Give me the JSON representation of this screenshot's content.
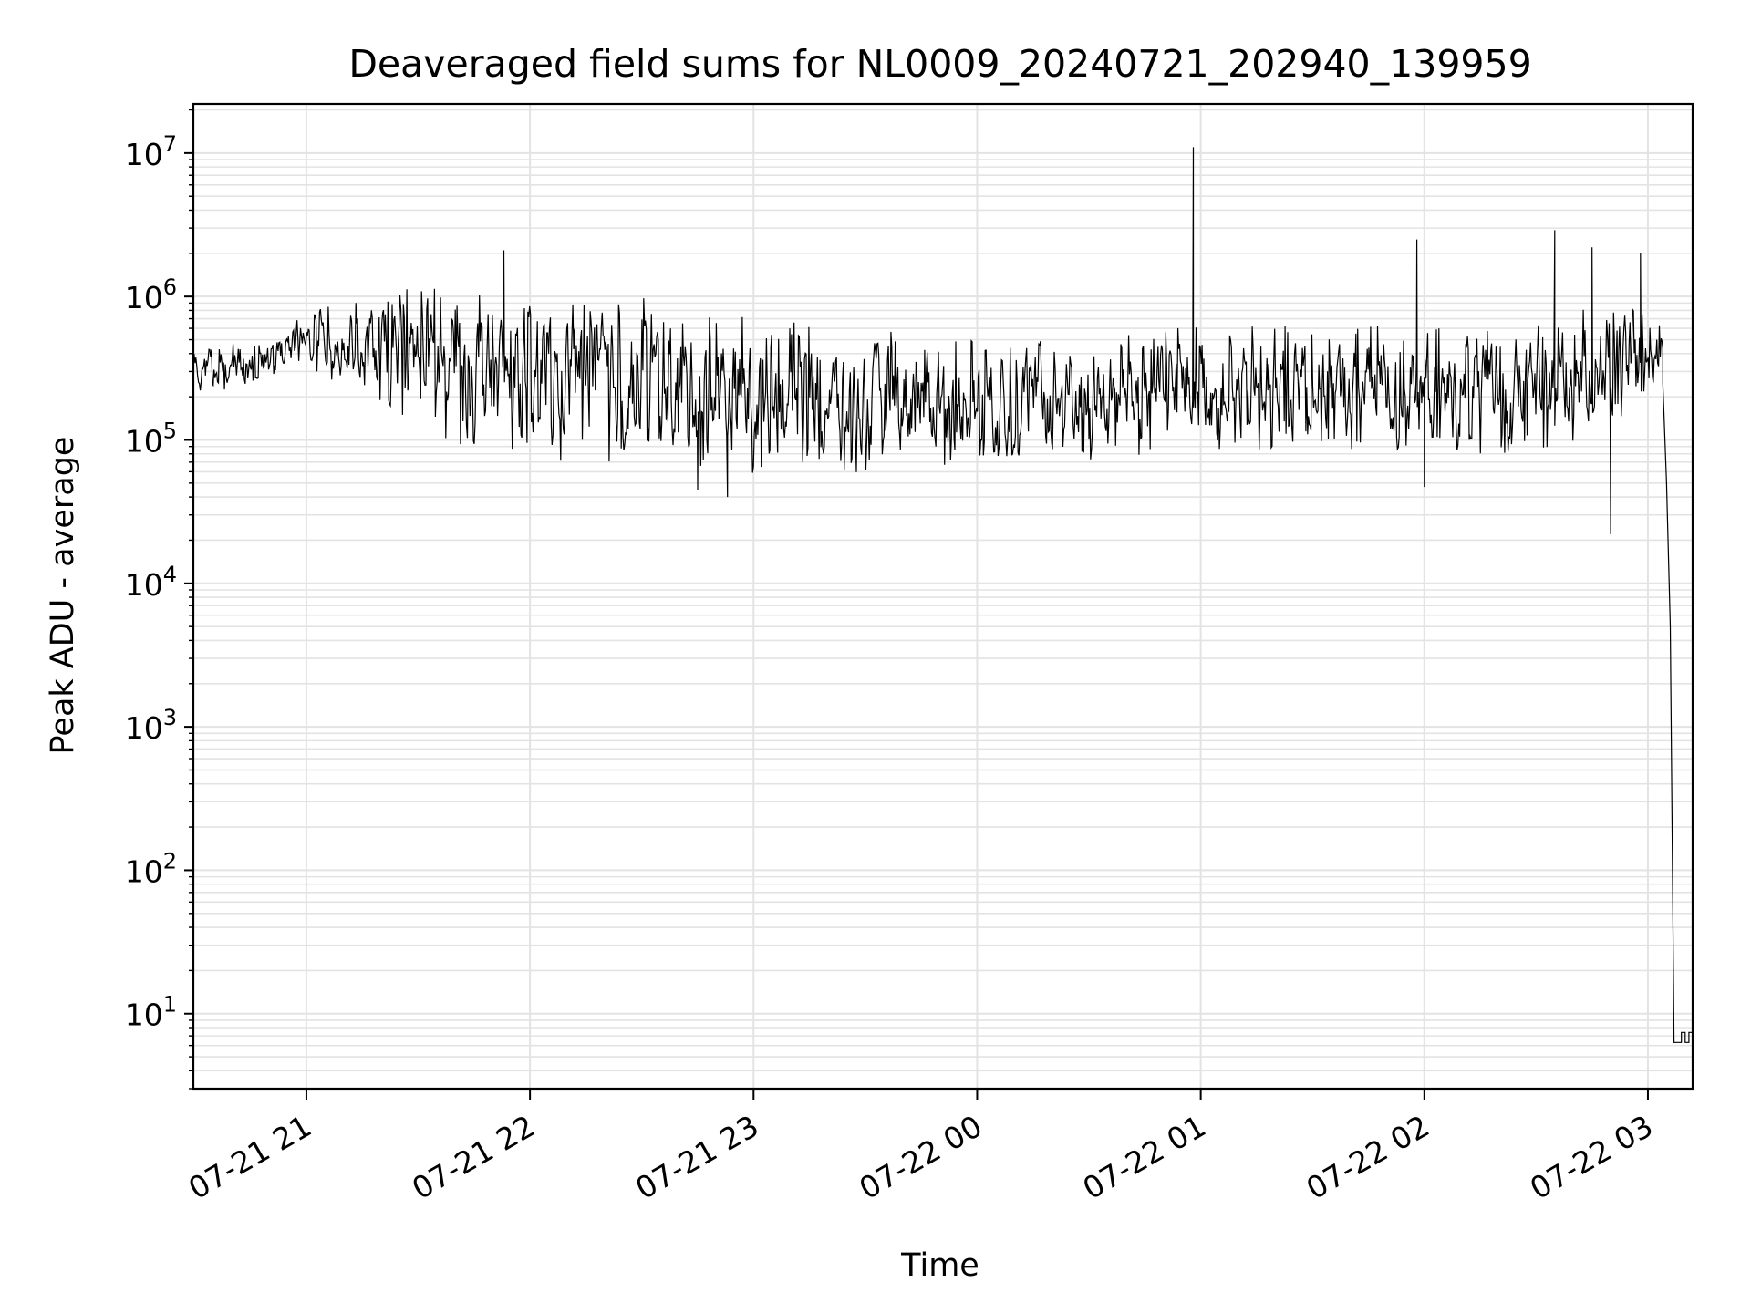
{
  "chart_data": {
    "type": "line",
    "title": "Deaveraged field sums for NL0009_20240721_202940_139959",
    "xlabel": "Time",
    "ylabel": "Peak ADU - average",
    "yscale": "log",
    "xlim": [
      "2024-07-21T20:29:40",
      "2024-07-22T03:12:00"
    ],
    "ylim": [
      3,
      22000000
    ],
    "grid": true,
    "line_color": "#000000",
    "grid_color": "#e3e3e3",
    "x_tick_labels": [
      "07-21 21",
      "07-21 22",
      "07-21 23",
      "07-22 00",
      "07-22 01",
      "07-22 02",
      "07-22 03"
    ],
    "x_tick_times": [
      "2024-07-21T21:00:00",
      "2024-07-21T22:00:00",
      "2024-07-21T23:00:00",
      "2024-07-22T00:00:00",
      "2024-07-22T01:00:00",
      "2024-07-22T02:00:00",
      "2024-07-22T03:00:00"
    ],
    "y_tick_values": [
      10,
      100,
      1000,
      10000,
      100000,
      1000000,
      10000000
    ],
    "y_tick_labels": [
      {
        "base": "10",
        "exp": "1"
      },
      {
        "base": "10",
        "exp": "2"
      },
      {
        "base": "10",
        "exp": "3"
      },
      {
        "base": "10",
        "exp": "4"
      },
      {
        "base": "10",
        "exp": "5"
      },
      {
        "base": "10",
        "exp": "6"
      },
      {
        "base": "10",
        "exp": "7"
      }
    ],
    "series": [
      {
        "type": "line",
        "noisy_band": true,
        "x": [
          "2024-07-21T20:29:40",
          "2024-07-21T20:42:00",
          "2024-07-21T20:50:00",
          "2024-07-21T21:00:00",
          "2024-07-21T21:15:00",
          "2024-07-21T21:30:00",
          "2024-07-21T21:45:00",
          "2024-07-21T22:00:00",
          "2024-07-21T22:30:00",
          "2024-07-21T23:00:00",
          "2024-07-21T23:30:00",
          "2024-07-22T00:00:00",
          "2024-07-22T00:30:00",
          "2024-07-22T01:00:00",
          "2024-07-22T01:30:00",
          "2024-07-22T02:00:00",
          "2024-07-22T02:30:00",
          "2024-07-22T02:50:00",
          "2024-07-22T03:00:00",
          "2024-07-22T03:04:00"
        ],
        "y_low": [
          220000,
          220000,
          280000,
          300000,
          200000,
          130000,
          80000,
          70000,
          70000,
          55000,
          60000,
          70000,
          70000,
          80000,
          80000,
          70000,
          80000,
          120000,
          200000,
          220000
        ],
        "y_high": [
          450000,
          480000,
          500000,
          800000,
          1000000,
          1200000,
          1200000,
          1100000,
          1000000,
          700000,
          600000,
          500000,
          550000,
          700000,
          650000,
          600000,
          700000,
          900000,
          800000,
          600000
        ]
      },
      {
        "type": "line",
        "x": [
          "2024-07-22T03:04:00",
          "2024-07-22T03:05:00",
          "2024-07-22T03:06:00",
          "2024-07-22T03:07:00",
          "2024-07-22T03:08:00",
          "2024-07-22T03:09:00",
          "2024-07-22T03:10:00",
          "2024-07-22T03:11:00",
          "2024-07-22T03:12:00"
        ],
        "y": [
          250000,
          50000,
          5000,
          6.3,
          6.3,
          7.4,
          6.3,
          7.4,
          6.3
        ]
      }
    ],
    "spikes": [
      {
        "x": "2024-07-21T21:53:00",
        "y": 2100000
      },
      {
        "x": "2024-07-22T00:58:00",
        "y": 11000000
      },
      {
        "x": "2024-07-22T01:58:00",
        "y": 2500000
      },
      {
        "x": "2024-07-22T02:35:00",
        "y": 2900000
      },
      {
        "x": "2024-07-22T02:45:00",
        "y": 2200000
      },
      {
        "x": "2024-07-22T02:50:00",
        "y": 22000
      },
      {
        "x": "2024-07-22T02:58:00",
        "y": 2000000
      },
      {
        "x": "2024-07-21T22:45:00",
        "y": 45000
      },
      {
        "x": "2024-07-21T22:53:00",
        "y": 40000
      },
      {
        "x": "2024-07-22T02:00:00",
        "y": 47000
      }
    ]
  }
}
